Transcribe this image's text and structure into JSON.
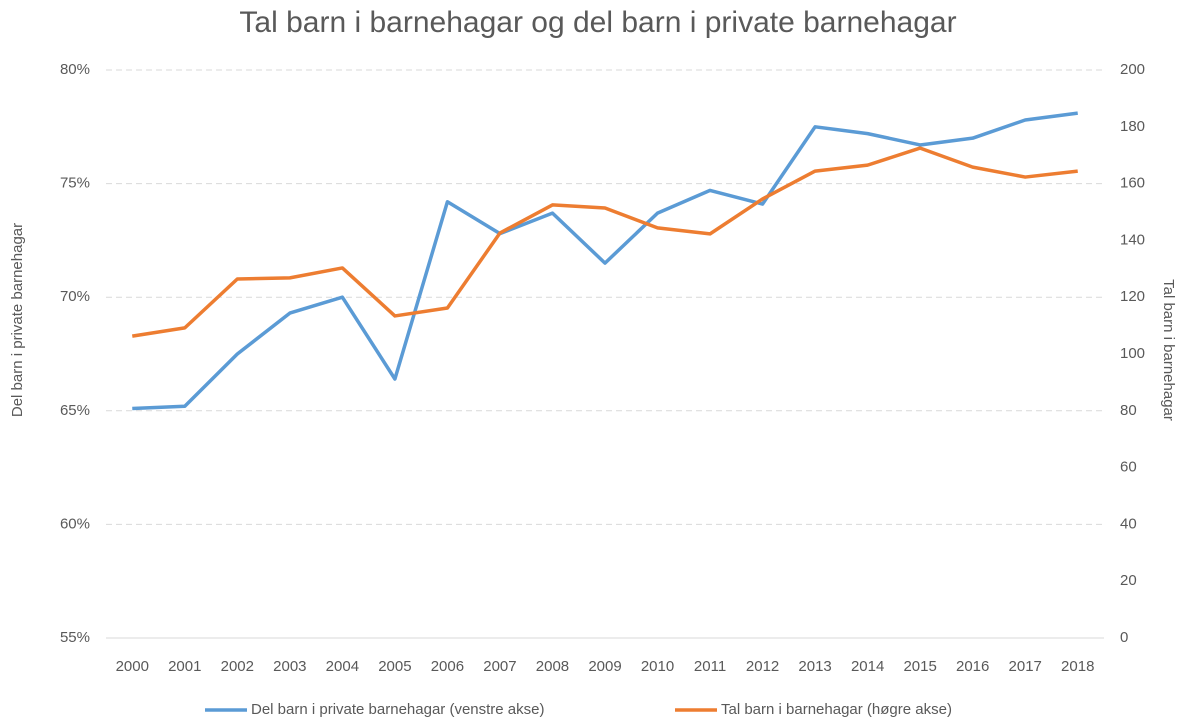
{
  "chart_data": {
    "type": "line",
    "title": "Tal barn i barnehagar og del barn i private barnehagar",
    "ylabel": "Del barn i private barnehagar",
    "y2label": "Tal barn i barnehagar",
    "categories": [
      "2000",
      "2001",
      "2002",
      "2003",
      "2004",
      "2005",
      "2006",
      "2007",
      "2008",
      "2009",
      "2010",
      "2011",
      "2012",
      "2013",
      "2014",
      "2015",
      "2016",
      "2017",
      "2018"
    ],
    "series": [
      {
        "name": "Del barn i private barnehagar (venstre akse)",
        "color": "#5b9bd5",
        "axis": "y",
        "values": [
          65.1,
          65.2,
          67.5,
          69.3,
          70.0,
          66.4,
          74.2,
          72.8,
          73.7,
          71.5,
          73.7,
          74.7,
          74.1,
          77.5,
          77.2,
          76.7,
          77.0,
          77.8,
          78.1
        ]
      },
      {
        "name": "Tal barn i barnehagar (høgre akse)",
        "color": "#ed7d31",
        "axis": "y2",
        "values": [
          106.3,
          109.2,
          126.4,
          126.8,
          130.3,
          113.4,
          116.2,
          142.6,
          152.5,
          151.4,
          144.4,
          142.3,
          154.6,
          164.4,
          166.5,
          172.5,
          165.8,
          162.3,
          164.4
        ]
      }
    ],
    "ylim": [
      55,
      80
    ],
    "yticks": [
      {
        "value": 55,
        "label": "55%"
      },
      {
        "value": 60,
        "label": "60%"
      },
      {
        "value": 65,
        "label": "65%"
      },
      {
        "value": 70,
        "label": "70%"
      },
      {
        "value": 75,
        "label": "75%"
      },
      {
        "value": 80,
        "label": "80%"
      }
    ],
    "y2lim": [
      0,
      200
    ],
    "y2ticks": [
      0,
      20,
      40,
      60,
      80,
      100,
      120,
      140,
      160,
      180,
      200
    ],
    "grid": true,
    "legend": "bottom"
  }
}
